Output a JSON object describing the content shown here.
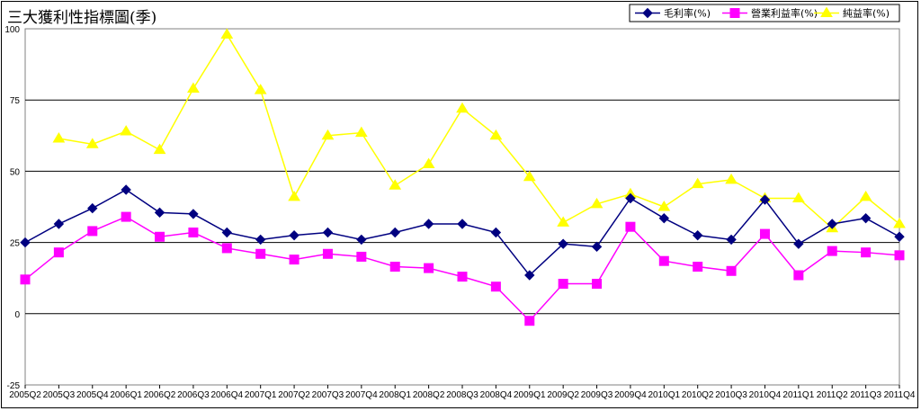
{
  "chart_data": {
    "type": "line",
    "title": "三大獲利性指標圖(季)",
    "categories": [
      "2005Q2",
      "2005Q3",
      "2005Q4",
      "2006Q1",
      "2006Q2",
      "2006Q3",
      "2006Q4",
      "2007Q1",
      "2007Q2",
      "2007Q3",
      "2007Q4",
      "2008Q1",
      "2008Q2",
      "2008Q3",
      "2008Q4",
      "2009Q1",
      "2009Q2",
      "2009Q3",
      "2009Q4",
      "2010Q1",
      "2010Q2",
      "2010Q3",
      "2010Q4",
      "2011Q1",
      "2011Q2",
      "2011Q3",
      "2011Q4"
    ],
    "series": [
      {
        "name": "毛利率(%)",
        "color": "#000080",
        "marker": "diamond",
        "values": [
          25,
          31.5,
          37,
          43.5,
          35.5,
          35,
          28.5,
          26,
          27.5,
          28.5,
          26,
          28.5,
          31.5,
          31.5,
          28.5,
          13.5,
          24.5,
          23.5,
          40.5,
          33.5,
          27.5,
          26,
          40,
          24.5,
          31.5,
          33.5,
          27
        ]
      },
      {
        "name": "營業利益率(%)",
        "color": "#ff00ff",
        "marker": "square",
        "values": [
          12,
          21.5,
          29,
          34,
          27,
          28.5,
          23,
          21,
          19,
          21,
          20,
          16.5,
          16,
          13,
          9.5,
          -2.5,
          10.5,
          10.5,
          30.5,
          18.5,
          16.5,
          15,
          28,
          13.5,
          22,
          21.5,
          20.5
        ]
      },
      {
        "name": "純益率(%)",
        "color": "#ffff00",
        "marker": "triangle",
        "values": [
          null,
          61.5,
          59.5,
          64,
          57.5,
          79,
          98,
          78.5,
          41,
          62.5,
          63.5,
          45,
          52.5,
          72,
          62.5,
          48,
          32,
          38.5,
          42,
          37.5,
          45.5,
          47,
          40.5,
          40.5,
          30,
          41,
          31.5
        ]
      }
    ],
    "yticks": [
      100,
      75,
      50,
      25,
      0,
      -25
    ],
    "ylim": [
      -25,
      100
    ],
    "grid": true,
    "legend": "top-right"
  }
}
